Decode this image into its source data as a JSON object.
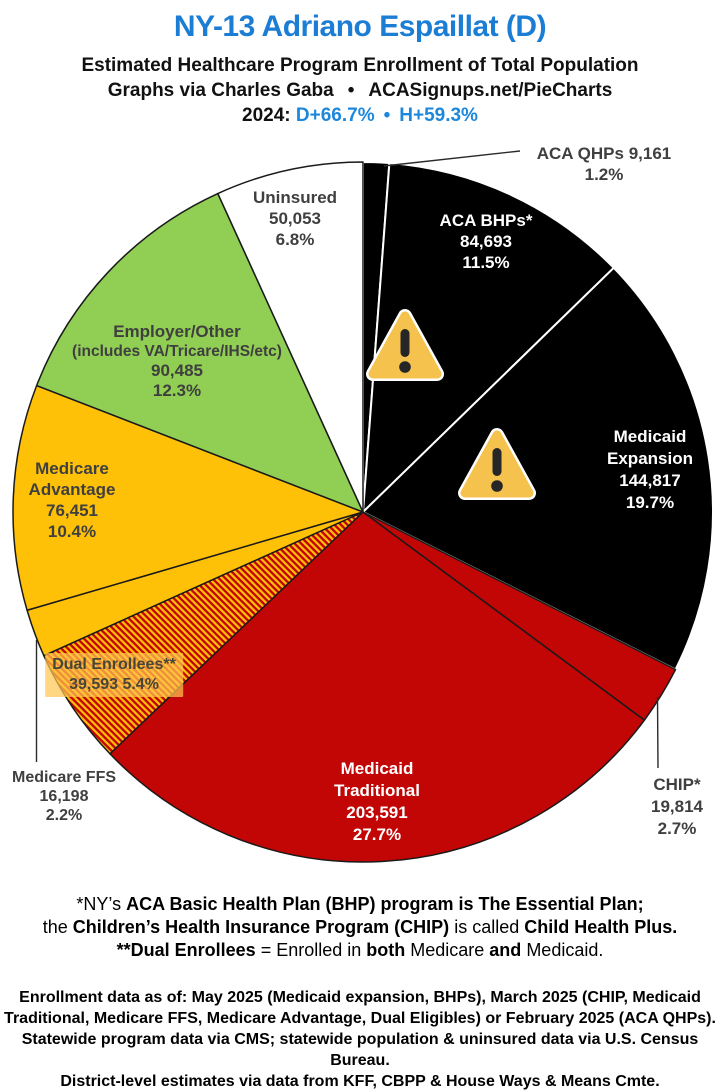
{
  "header": {
    "title": "NY-13 Adriano Espaillat (D)",
    "subtitle": "Estimated Healthcare Program Enrollment of Total Population",
    "credit": "Graphs via Charles Gaba",
    "credit_sep": "•",
    "credit_site": "ACASignups.net/PieCharts",
    "year_label": "2024:",
    "stat_d": "D+66.7%",
    "stat_sep": "•",
    "stat_h": "H+59.3%"
  },
  "chart_data": {
    "type": "pie",
    "title": "NY-13 Adriano Espaillat (D)",
    "subtitle": "Estimated Healthcare Program Enrollment of Total Population",
    "start_angle_deg": 0,
    "direction": "clockwise",
    "units": "people",
    "slices": [
      {
        "id": "aca-qhps",
        "label": "ACA QHPs",
        "value": 9161,
        "pct": 1.2,
        "color": "#000000"
      },
      {
        "id": "aca-bhps",
        "label": "ACA BHPs*",
        "value": 84693,
        "pct": 11.5,
        "color": "#000000"
      },
      {
        "id": "expansion",
        "label": "Medicaid Expansion",
        "value": 144817,
        "pct": 19.7,
        "color": "#000000"
      },
      {
        "id": "chip",
        "label": "CHIP*",
        "value": 19814,
        "pct": 2.7,
        "color": "#C20505"
      },
      {
        "id": "traditional",
        "label": "Medicaid Traditional",
        "value": 203591,
        "pct": 27.7,
        "color": "#C20505"
      },
      {
        "id": "dual",
        "label": "Dual Enrollees**",
        "value": 39593,
        "pct": 5.4,
        "color": "hatch"
      },
      {
        "id": "ffs",
        "label": "Medicare FFS",
        "value": 16198,
        "pct": 2.2,
        "color": "#FFC107"
      },
      {
        "id": "advantage",
        "label": "Medicare Advantage",
        "value": 76451,
        "pct": 10.4,
        "color": "#FFC107"
      },
      {
        "id": "employer",
        "label": "Employer/Other (includes VA/Tricare/IHS/etc)",
        "value": 90485,
        "pct": 12.3,
        "color": "#90CE54"
      },
      {
        "id": "uninsured",
        "label": "Uninsured",
        "value": 50053,
        "pct": 6.8,
        "color": "#FFFFFF"
      }
    ],
    "colors": {
      "black": "#000000",
      "red": "#C20505",
      "yellow": "#FFC107",
      "green": "#90CE54",
      "white": "#FFFFFF",
      "hatch": "red-yellow-diagonal-stripes",
      "title_blue": "#1B7ED4",
      "stats_blue": "#1D87DB",
      "label_gray": "#3F3F3F"
    },
    "legend": "labels-on-and-around-slices"
  },
  "slice_labels": {
    "qhps": {
      "l1": "ACA QHPs 9,161",
      "l2": "1.2%"
    },
    "bhps": {
      "l1": "ACA BHPs*",
      "l2": "84,693",
      "l3": "11.5%"
    },
    "expansion": {
      "l1": "Medicaid",
      "l2": "Expansion",
      "l3": "144,817",
      "l4": "19.7%"
    },
    "chip": {
      "l1": "CHIP*",
      "l2": "19,814",
      "l3": "2.7%"
    },
    "traditional": {
      "l1": "Medicaid",
      "l2": "Traditional",
      "l3": "203,591",
      "l4": "27.7%"
    },
    "dual": {
      "l1": "Dual Enrollees**",
      "l2": "39,593 5.4%"
    },
    "ffs": {
      "l1": "Medicare FFS",
      "l2": "16,198",
      "l3": "2.2%"
    },
    "advantage": {
      "l1": "Medicare",
      "l2": "Advantage",
      "l3": "76,451",
      "l4": "10.4%"
    },
    "employer": {
      "l1": "Employer/Other",
      "l2": "(includes VA/Tricare/IHS/etc)",
      "l3": "90,485",
      "l4": "12.3%"
    },
    "uninsured": {
      "l1": "Uninsured",
      "l2": "50,053",
      "l3": "6.8%"
    }
  },
  "icons": [
    {
      "name": "warning-icon",
      "glyph": "warning-triangle"
    },
    {
      "name": "warning-icon",
      "glyph": "warning-triangle"
    }
  ],
  "footnotes": {
    "line1": [
      {
        "t": "*NY’s ",
        "b": false
      },
      {
        "t": "ACA Basic Health Plan (BHP) program is The Essential Plan;",
        "b": true
      }
    ],
    "line2": [
      {
        "t": "the ",
        "b": false
      },
      {
        "t": "Children’s Health Insurance Program (CHIP)",
        "b": true
      },
      {
        "t": " is called ",
        "b": false
      },
      {
        "t": "Child Health Plus.",
        "b": true
      }
    ],
    "line3": [
      {
        "t": "**Dual Enrollees",
        "b": true
      },
      {
        "t": " = Enrolled in ",
        "b": false
      },
      {
        "t": "both",
        "b": true
      },
      {
        "t": " Medicare ",
        "b": false
      },
      {
        "t": "and",
        "b": true
      },
      {
        "t": " Medicaid.",
        "b": false
      }
    ]
  },
  "footer": {
    "line1": "Enrollment data as of: May 2025 (Medicaid expansion, BHPs), March 2025 (CHIP, Medicaid",
    "line2": "Traditional, Medicare FFS, Medicare Advantage, Dual Eligibles) or February 2025 (ACA QHPs).",
    "line3": "Statewide program data via CMS; statewide population & uninsured data via U.S. Census Bureau.",
    "line4": "District-level estimates via data from KFF, CBPP & House Ways & Means Cmte."
  }
}
